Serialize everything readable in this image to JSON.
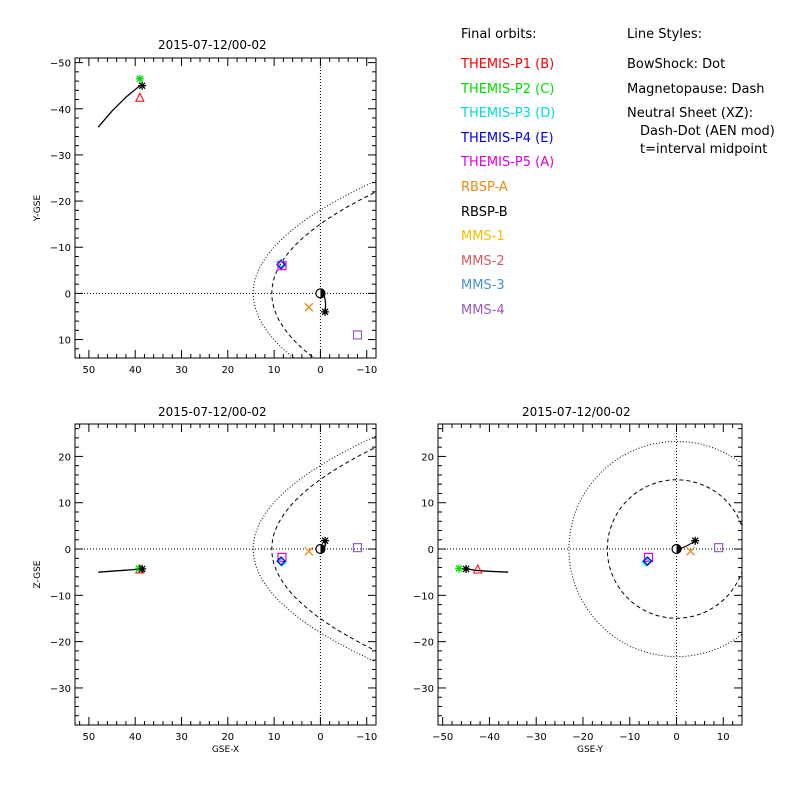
{
  "legend": {
    "heading": "Final orbits:",
    "entries": [
      {
        "label": "THEMIS-P1 (B)",
        "color": "#ff0000"
      },
      {
        "label": "THEMIS-P2 (C)",
        "color": "#00e000"
      },
      {
        "label": "THEMIS-P3 (D)",
        "color": "#00dcdc"
      },
      {
        "label": "THEMIS-P4 (E)",
        "color": "#0000dd"
      },
      {
        "label": "THEMIS-P5 (A)",
        "color": "#e000e0"
      },
      {
        "label": "RBSP-A",
        "color": "#e88a10"
      },
      {
        "label": "RBSP-B",
        "color": "#000000"
      },
      {
        "label": "MMS-1",
        "color": "#f0c000"
      },
      {
        "label": "MMS-2",
        "color": "#d06060"
      },
      {
        "label": "MMS-3",
        "color": "#4a90d0"
      },
      {
        "label": "MMS-4",
        "color": "#9b59c0"
      }
    ]
  },
  "line_styles": {
    "heading": "Line Styles:",
    "lines": [
      "BowShock: Dot",
      "Magnetopause: Dash",
      "Neutral Sheet (XZ):",
      "Dash-Dot (AEN mod)",
      "t=interval midpoint"
    ]
  },
  "chart_data": [
    {
      "type": "scatter",
      "title": "2015-07-12/00-02",
      "xlabel": "",
      "ylabel": "Y-GSE",
      "xlim": [
        53,
        -12
      ],
      "ylim": [
        14,
        -51
      ],
      "xticks": [
        50,
        40,
        30,
        20,
        10,
        0,
        -10
      ],
      "yticks": [
        -50,
        -40,
        -30,
        -20,
        -10,
        0,
        10
      ],
      "track": [
        [
          48,
          -36
        ],
        [
          45,
          -39.5
        ],
        [
          42,
          -42.5
        ],
        [
          39,
          -45
        ]
      ],
      "markers": [
        {
          "name": "THEMIS-P1 (B)",
          "symbol": "triangle",
          "x": 39,
          "y": -42.5
        },
        {
          "name": "THEMIS-P2 (C)",
          "symbol": "asterisk",
          "x": 39,
          "y": -46.5
        },
        {
          "name": "RBSP-B",
          "symbol": "asterisk",
          "x": 38.5,
          "y": -45
        },
        {
          "name": "THEMIS-P3 (D)",
          "symbol": "diamond",
          "x": 8.5,
          "y": -6.5
        },
        {
          "name": "THEMIS-P4 (E)",
          "symbol": "diamond",
          "x": 8.5,
          "y": -6.2
        },
        {
          "name": "THEMIS-P5 (A)",
          "symbol": "square",
          "x": 8.3,
          "y": -6.0
        },
        {
          "name": "RBSP-A",
          "symbol": "cross",
          "x": 2.5,
          "y": 3
        },
        {
          "name": "RBSP-B",
          "symbol": "asterisk",
          "x": -1,
          "y": 4
        },
        {
          "name": "MMS-4",
          "symbol": "square",
          "x": -8,
          "y": 9
        }
      ]
    },
    {
      "type": "scatter",
      "title": "2015-07-12/00-02",
      "xlabel": "GSE-X",
      "ylabel": "Z-GSE",
      "xlim": [
        53,
        -12
      ],
      "ylim": [
        -38,
        27
      ],
      "xticks": [
        50,
        40,
        30,
        20,
        10,
        0,
        -10
      ],
      "yticks": [
        20,
        10,
        0,
        -10,
        -20,
        -30
      ],
      "track": [
        [
          48,
          -5
        ],
        [
          44,
          -4.7
        ],
        [
          41,
          -4.5
        ],
        [
          38.5,
          -4.3
        ]
      ],
      "markers": [
        {
          "name": "THEMIS-P1 (B)",
          "symbol": "triangle",
          "x": 39,
          "y": -4.3
        },
        {
          "name": "THEMIS-P2 (C)",
          "symbol": "asterisk",
          "x": 39.2,
          "y": -4.2
        },
        {
          "name": "RBSP-B",
          "symbol": "asterisk",
          "x": 38.5,
          "y": -4.3
        },
        {
          "name": "THEMIS-P5 (A)",
          "symbol": "square",
          "x": 8.3,
          "y": -1.8
        },
        {
          "name": "THEMIS-P3 (D)",
          "symbol": "diamond",
          "x": 8.3,
          "y": -2.8
        },
        {
          "name": "THEMIS-P4 (E)",
          "symbol": "diamond",
          "x": 8.5,
          "y": -2.6
        },
        {
          "name": "RBSP-A",
          "symbol": "cross",
          "x": 2.5,
          "y": -0.5
        },
        {
          "name": "RBSP-B",
          "symbol": "asterisk",
          "x": -1,
          "y": 1.8
        },
        {
          "name": "MMS-4",
          "symbol": "square",
          "x": -8,
          "y": 0.3
        }
      ]
    },
    {
      "type": "scatter",
      "title": "2015-07-12/00-02",
      "xlabel": "GSE-Y",
      "ylabel": "",
      "xlim": [
        -51,
        14
      ],
      "ylim": [
        -38,
        27
      ],
      "xticks": [
        -50,
        -40,
        -30,
        -20,
        -10,
        0,
        10
      ],
      "yticks": [
        20,
        10,
        0,
        -10,
        -20,
        -30
      ],
      "track": [
        [
          -36,
          -5
        ],
        [
          -40,
          -4.8
        ],
        [
          -43,
          -4.6
        ],
        [
          -45,
          -4.3
        ]
      ],
      "markers": [
        {
          "name": "THEMIS-P1 (B)",
          "symbol": "triangle",
          "x": -42.5,
          "y": -4.3
        },
        {
          "name": "THEMIS-P2 (C)",
          "symbol": "asterisk",
          "x": -46.5,
          "y": -4.2
        },
        {
          "name": "RBSP-B",
          "symbol": "asterisk",
          "x": -45,
          "y": -4.3
        },
        {
          "name": "THEMIS-P5 (A)",
          "symbol": "square",
          "x": -6,
          "y": -1.8
        },
        {
          "name": "THEMIS-P3 (D)",
          "symbol": "diamond",
          "x": -6.5,
          "y": -2.8
        },
        {
          "name": "THEMIS-P4 (E)",
          "symbol": "diamond",
          "x": -6.2,
          "y": -2.6
        },
        {
          "name": "RBSP-A",
          "symbol": "cross",
          "x": 3,
          "y": -0.5
        },
        {
          "name": "RBSP-B",
          "symbol": "asterisk",
          "x": 4,
          "y": 1.8
        },
        {
          "name": "MMS-4",
          "symbol": "square",
          "x": 9,
          "y": 0.3
        }
      ]
    }
  ]
}
